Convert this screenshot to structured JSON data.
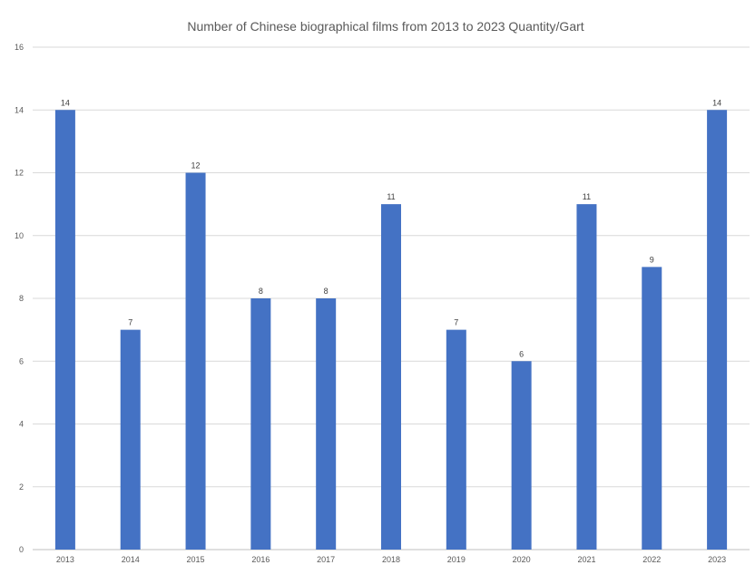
{
  "chart_data": {
    "type": "bar",
    "title": "Number of Chinese biographical films from 2013 to 2023 Quantity/Gart",
    "xlabel": "",
    "ylabel": "",
    "categories": [
      "2013",
      "2014",
      "2015",
      "2016",
      "2017",
      "2018",
      "2019",
      "2020",
      "2021",
      "2022",
      "2023"
    ],
    "values": [
      14,
      7,
      12,
      8,
      8,
      11,
      7,
      6,
      11,
      9,
      14
    ],
    "ylim": [
      0,
      16
    ],
    "yticks": [
      "0",
      "2",
      "4",
      "6",
      "8",
      "10",
      "12",
      "14",
      "16"
    ],
    "grid": true,
    "legend": "none",
    "data_labels": true,
    "bar_color": "#4472C4"
  }
}
